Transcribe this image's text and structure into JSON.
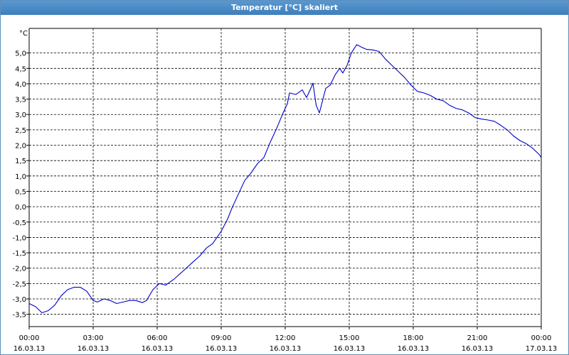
{
  "window": {
    "title": "Temperatur [°C] skaliert"
  },
  "chart_data": {
    "type": "line",
    "title": "Temperatur [°C] skaliert",
    "unit_label": "°C",
    "xlabel": "",
    "ylabel": "",
    "grid": true,
    "grid_style": "dashed",
    "ylim": [
      -3.9,
      5.8
    ],
    "y_ticks": [
      -3.5,
      -3.0,
      -2.5,
      -2.0,
      -1.5,
      -1.0,
      -0.5,
      0.0,
      0.5,
      1.0,
      1.5,
      2.0,
      2.5,
      3.0,
      3.5,
      4.0,
      4.5,
      5.0
    ],
    "y_tick_labels": [
      "-3,5",
      "-3,0",
      "-2,5",
      "-2,0",
      "-1,5",
      "-1,0",
      "-0,5",
      "0,0",
      "0,5",
      "1,0",
      "1,5",
      "2,0",
      "2,5",
      "3,0",
      "3,5",
      "4,0",
      "4,5",
      "5,0"
    ],
    "x_range_hours": [
      0,
      24
    ],
    "x_ticks_hours": [
      0,
      3,
      6,
      9,
      12,
      15,
      18,
      21,
      24
    ],
    "x_tick_labels": [
      {
        "time": "00:00",
        "date": "16.03.13"
      },
      {
        "time": "03:00",
        "date": "16.03.13"
      },
      {
        "time": "06:00",
        "date": "16.03.13"
      },
      {
        "time": "09:00",
        "date": "16.03.13"
      },
      {
        "time": "12:00",
        "date": "16.03.13"
      },
      {
        "time": "15:00",
        "date": "16.03.13"
      },
      {
        "time": "18:00",
        "date": "16.03.13"
      },
      {
        "time": "21:00",
        "date": "16.03.13"
      },
      {
        "time": "00:00",
        "date": "17.03.13"
      }
    ],
    "line_color": "#0000cc",
    "series": [
      {
        "points": [
          [
            0.0,
            -3.15
          ],
          [
            0.3,
            -3.25
          ],
          [
            0.6,
            -3.45
          ],
          [
            0.9,
            -3.38
          ],
          [
            1.2,
            -3.2
          ],
          [
            1.5,
            -2.9
          ],
          [
            1.8,
            -2.7
          ],
          [
            2.1,
            -2.62
          ],
          [
            2.4,
            -2.62
          ],
          [
            2.7,
            -2.75
          ],
          [
            3.0,
            -3.05
          ],
          [
            3.2,
            -3.1
          ],
          [
            3.5,
            -3.0
          ],
          [
            3.8,
            -3.05
          ],
          [
            4.1,
            -3.15
          ],
          [
            4.4,
            -3.1
          ],
          [
            4.7,
            -3.05
          ],
          [
            5.0,
            -3.05
          ],
          [
            5.3,
            -3.12
          ],
          [
            5.5,
            -3.05
          ],
          [
            5.8,
            -2.7
          ],
          [
            6.1,
            -2.5
          ],
          [
            6.4,
            -2.55
          ],
          [
            6.8,
            -2.35
          ],
          [
            7.2,
            -2.1
          ],
          [
            7.6,
            -1.85
          ],
          [
            8.0,
            -1.6
          ],
          [
            8.3,
            -1.35
          ],
          [
            8.6,
            -1.2
          ],
          [
            9.0,
            -0.8
          ],
          [
            9.3,
            -0.4
          ],
          [
            9.5,
            -0.05
          ],
          [
            9.8,
            0.4
          ],
          [
            10.1,
            0.85
          ],
          [
            10.4,
            1.1
          ],
          [
            10.7,
            1.4
          ],
          [
            11.0,
            1.6
          ],
          [
            11.3,
            2.1
          ],
          [
            11.6,
            2.55
          ],
          [
            11.9,
            3.05
          ],
          [
            12.1,
            3.35
          ],
          [
            12.2,
            3.7
          ],
          [
            12.5,
            3.65
          ],
          [
            12.8,
            3.8
          ],
          [
            13.0,
            3.55
          ],
          [
            13.2,
            3.85
          ],
          [
            13.3,
            4.02
          ],
          [
            13.45,
            3.3
          ],
          [
            13.6,
            3.05
          ],
          [
            13.9,
            3.85
          ],
          [
            14.1,
            3.95
          ],
          [
            14.35,
            4.3
          ],
          [
            14.55,
            4.5
          ],
          [
            14.7,
            4.35
          ],
          [
            14.9,
            4.6
          ],
          [
            15.1,
            5.0
          ],
          [
            15.35,
            5.27
          ],
          [
            15.6,
            5.18
          ],
          [
            15.8,
            5.12
          ],
          [
            16.1,
            5.1
          ],
          [
            16.4,
            5.05
          ],
          [
            16.7,
            4.8
          ],
          [
            17.0,
            4.6
          ],
          [
            17.3,
            4.4
          ],
          [
            17.6,
            4.2
          ],
          [
            17.9,
            3.95
          ],
          [
            18.2,
            3.75
          ],
          [
            18.5,
            3.7
          ],
          [
            18.8,
            3.62
          ],
          [
            19.1,
            3.5
          ],
          [
            19.4,
            3.45
          ],
          [
            19.7,
            3.3
          ],
          [
            20.0,
            3.2
          ],
          [
            20.3,
            3.15
          ],
          [
            20.6,
            3.05
          ],
          [
            20.9,
            2.9
          ],
          [
            21.2,
            2.85
          ],
          [
            21.5,
            2.82
          ],
          [
            21.8,
            2.78
          ],
          [
            22.1,
            2.65
          ],
          [
            22.4,
            2.5
          ],
          [
            22.7,
            2.3
          ],
          [
            23.0,
            2.15
          ],
          [
            23.3,
            2.05
          ],
          [
            23.6,
            1.9
          ],
          [
            23.9,
            1.7
          ],
          [
            24.0,
            1.6
          ]
        ]
      }
    ]
  }
}
